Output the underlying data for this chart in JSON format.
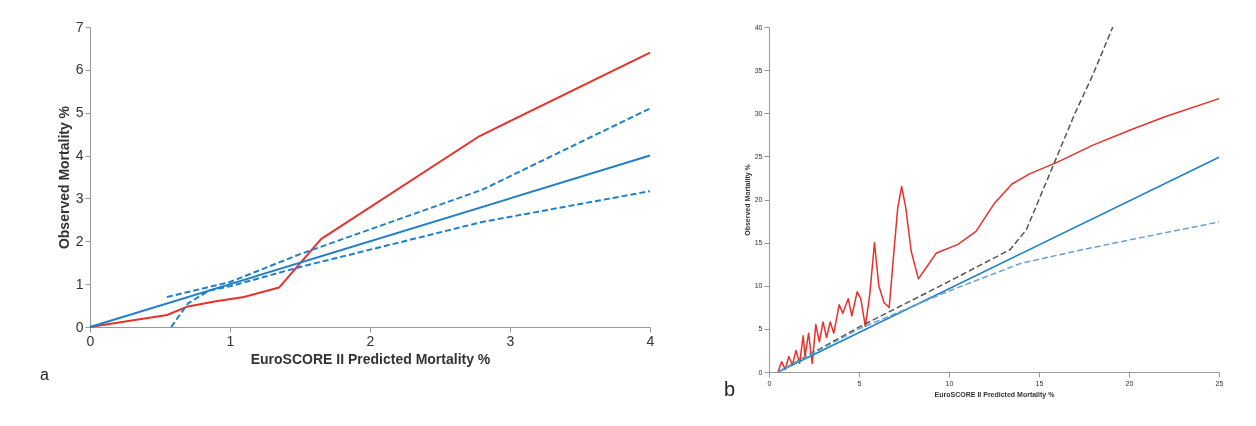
{
  "chart_data": [
    {
      "type": "line",
      "xlabel": "EuroSCORE II Predicted Mortality %",
      "ylabel": "Observed Mortality %",
      "annotations": [
        "a"
      ],
      "xlim": [
        0,
        4
      ],
      "ylim": [
        0,
        7
      ],
      "xticks": [
        0,
        1,
        2,
        3,
        4
      ],
      "yticks": [
        0,
        1,
        2,
        3,
        4,
        5,
        6,
        7
      ],
      "grid": false,
      "series": [
        {
          "color": "#e8312b",
          "line_style": "solid",
          "x": [
            0,
            0.55,
            0.7,
            0.9,
            1.1,
            1.35,
            1.65,
            2.78,
            4
          ],
          "values": [
            0,
            0.28,
            0.48,
            0.6,
            0.7,
            0.92,
            2.05,
            4.45,
            6.4
          ]
        },
        {
          "color": "#1f7fc8",
          "line_style": "dashed",
          "x": [
            0.55,
            1,
            1.5,
            2.8,
            4
          ],
          "values": [
            0.7,
            1.05,
            1.7,
            3.2,
            5.1
          ]
        },
        {
          "color": "#1f7fc8",
          "line_style": "solid",
          "x": [
            0,
            4
          ],
          "values": [
            0,
            4
          ]
        },
        {
          "color": "#1f7fc8",
          "line_style": "dashed",
          "x": [
            0.58,
            0.7,
            0.85,
            1,
            1.5,
            2.8,
            4
          ],
          "values": [
            0,
            0.55,
            0.85,
            0.95,
            1.4,
            2.45,
            3.17
          ]
        }
      ]
    },
    {
      "type": "line",
      "xlabel": "EuroSCORE II Predicted Mortality %",
      "ylabel": "Observed Mortality %",
      "annotations": [
        "b"
      ],
      "xlim": [
        0,
        25
      ],
      "ylim": [
        0,
        40
      ],
      "xticks": [
        0,
        5,
        10,
        15,
        20,
        25
      ],
      "yticks": [
        0,
        5,
        10,
        15,
        20,
        25,
        30,
        35,
        40
      ],
      "grid": false,
      "series": [
        {
          "color": "#e8312b",
          "line_style": "solid",
          "x": [
            0.5,
            0.7,
            0.9,
            1.1,
            1.3,
            1.5,
            1.7,
            1.9,
            2.0,
            2.2,
            2.4,
            2.6,
            2.8,
            3.0,
            3.2,
            3.4,
            3.6,
            3.9,
            4.1,
            4.4,
            4.6,
            4.9,
            5.1,
            5.35,
            5.6,
            5.86,
            6.1,
            6.4,
            6.68,
            6.9,
            7.15,
            7.37,
            7.6,
            7.9,
            8.3,
            8.7,
            9.3,
            10.5,
            11.5,
            12.5,
            13.5,
            14.5,
            16,
            18,
            20,
            22,
            25
          ],
          "values": [
            0,
            1.2,
            0.3,
            1.8,
            0.8,
            2.5,
            1,
            4.2,
            1.8,
            4.5,
            1,
            5.5,
            3.5,
            5.8,
            4,
            5.8,
            4.5,
            7.8,
            6.8,
            8.5,
            6.5,
            9.3,
            8.5,
            5.3,
            9,
            15,
            10,
            8,
            7.5,
            13,
            19,
            21.5,
            19,
            14,
            10.8,
            12,
            13.8,
            14.8,
            16.3,
            19.5,
            21.8,
            23,
            24.3,
            26.3,
            28,
            29.6,
            31.7
          ]
        },
        {
          "color": "#555555",
          "line_style": "dashed",
          "x": [
            0.5,
            5,
            10,
            13.4,
            14.3,
            15,
            16,
            17,
            18,
            19.1
          ],
          "values": [
            0,
            5.2,
            10.5,
            14.2,
            16.5,
            20,
            25,
            30,
            34.5,
            40
          ]
        },
        {
          "color": "#1f7fc8",
          "line_style": "solid",
          "x": [
            0.5,
            25
          ],
          "values": [
            0,
            24.9
          ]
        },
        {
          "color": "#6a9fd4",
          "line_style": "dashed",
          "x": [
            0.5,
            5,
            10,
            14,
            17,
            20,
            25
          ],
          "values": [
            0,
            5,
            9.4,
            12.6,
            14,
            15.3,
            17.4
          ]
        }
      ]
    }
  ]
}
